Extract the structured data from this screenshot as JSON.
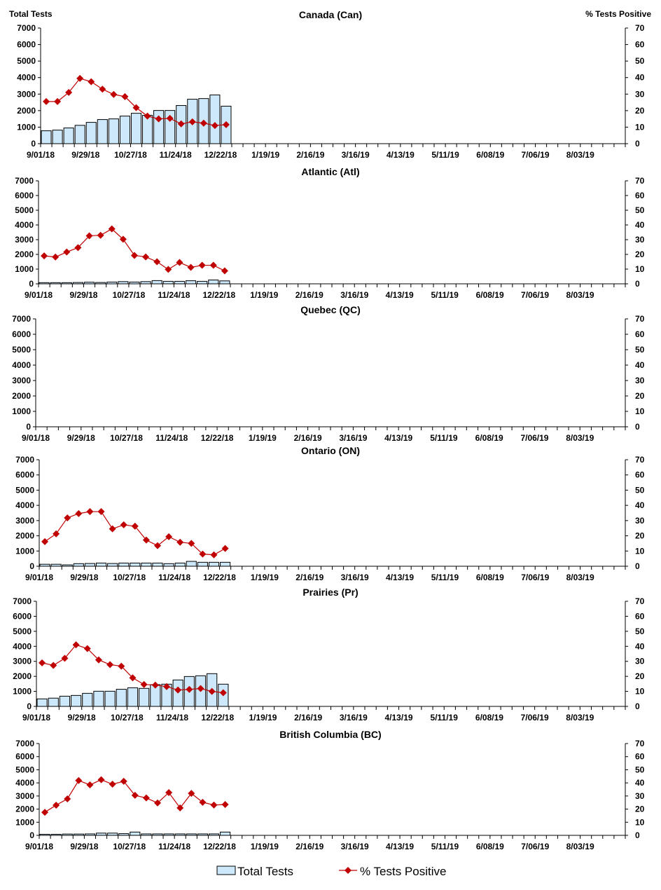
{
  "chart_data": {
    "type": "bar+line",
    "left_axis_label": "Total Tests",
    "right_axis_label": "% Tests Positive",
    "left_ylim": [
      0,
      7000
    ],
    "left_ticks": [
      0,
      1000,
      2000,
      3000,
      4000,
      5000,
      6000,
      7000
    ],
    "right_ylim": [
      0,
      70
    ],
    "right_ticks": [
      0,
      10,
      20,
      30,
      40,
      50,
      60,
      70
    ],
    "x_tick_labels": [
      "9/01/18",
      "9/29/18",
      "10/27/18",
      "11/24/18",
      "12/22/18",
      "1/19/19",
      "2/16/19",
      "3/16/19",
      "4/13/19",
      "5/11/19",
      "6/08/19",
      "7/06/19",
      "8/03/19"
    ],
    "weeks_on_axis": 52,
    "grid": false,
    "legend_position": "bottom",
    "legend": [
      {
        "name": "Total Tests",
        "type": "bar"
      },
      {
        "name": "% Tests Positive",
        "type": "line"
      }
    ],
    "colors": {
      "bar_fill": "#cce8fa",
      "bar_stroke": "#000000",
      "line": "#c00000"
    },
    "panels": [
      {
        "title": "Canada (Can)",
        "total_tests": [
          780,
          820,
          950,
          1110,
          1290,
          1460,
          1500,
          1670,
          1840,
          1720,
          2010,
          2010,
          2310,
          2690,
          2730,
          2950,
          2270
        ],
        "pct_positive": [
          25.5,
          25.5,
          31,
          39.5,
          37.5,
          33,
          29.8,
          28.5,
          21.8,
          16.7,
          15,
          15.3,
          12,
          13.2,
          12.4,
          11,
          11.5
        ]
      },
      {
        "title": "Atlantic (Atl)",
        "total_tests": [
          80,
          80,
          80,
          90,
          110,
          90,
          120,
          150,
          120,
          150,
          220,
          170,
          170,
          210,
          170,
          260,
          200
        ],
        "pct_positive": [
          19,
          18.2,
          21.6,
          24.6,
          32.6,
          33,
          37.3,
          30.3,
          19.3,
          18.3,
          15,
          9.8,
          14.5,
          11.2,
          12.6,
          12.6,
          8.8
        ]
      },
      {
        "title": "Quebec (QC)",
        "total_tests": [],
        "pct_positive": []
      },
      {
        "title": "Ontario (ON)",
        "total_tests": [
          130,
          130,
          90,
          170,
          180,
          210,
          180,
          210,
          210,
          210,
          210,
          170,
          210,
          320,
          260,
          260,
          260
        ],
        "pct_positive": [
          16.2,
          21.3,
          31.8,
          34.6,
          35.9,
          35.9,
          24.6,
          27.2,
          26.3,
          17.2,
          13.5,
          19.4,
          15.8,
          15,
          8,
          7.5,
          11.7
        ]
      },
      {
        "title": "Prairies (Pr)",
        "total_tests": [
          500,
          550,
          680,
          730,
          870,
          1010,
          1010,
          1140,
          1240,
          1200,
          1450,
          1480,
          1760,
          1990,
          2040,
          2180,
          1480
        ],
        "pct_positive": [
          29,
          27.3,
          32,
          41,
          38.5,
          31,
          27.8,
          26.8,
          19,
          14.6,
          14.2,
          13.2,
          10.9,
          11.3,
          11.9,
          10,
          9.1
        ]
      },
      {
        "title": "British Columbia (BC)",
        "total_tests": [
          80,
          80,
          100,
          100,
          110,
          170,
          170,
          130,
          250,
          110,
          110,
          110,
          110,
          110,
          110,
          110,
          250
        ],
        "pct_positive": [
          17.6,
          23,
          27.8,
          41.8,
          38.5,
          42.4,
          39,
          41.2,
          30.5,
          28.5,
          24.7,
          32.6,
          20.9,
          32,
          25.2,
          23.1,
          23.5
        ]
      }
    ]
  }
}
